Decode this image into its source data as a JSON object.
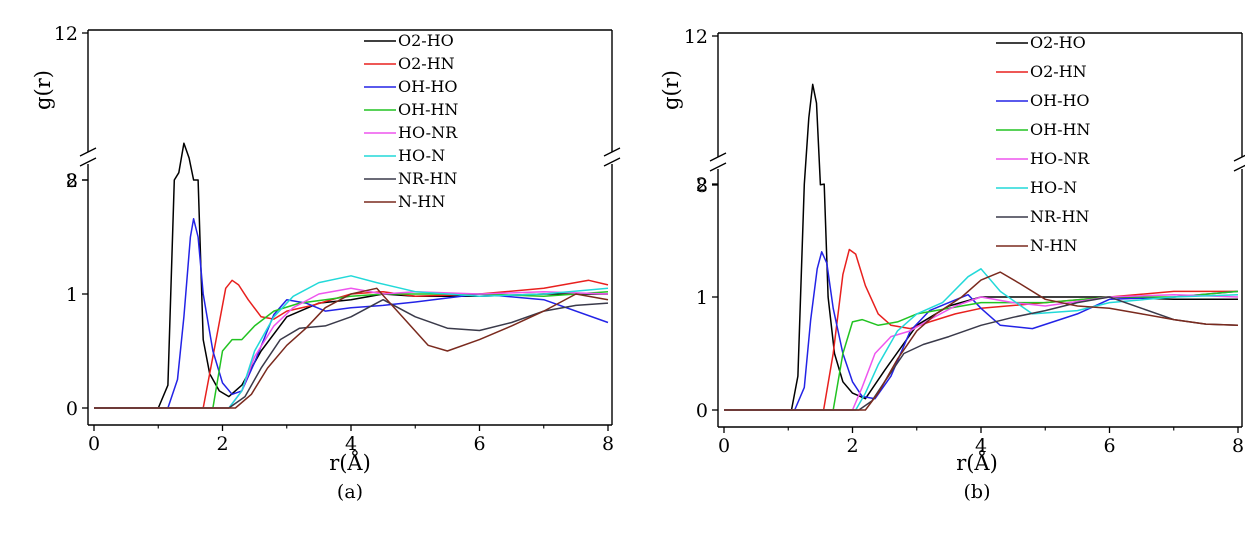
{
  "chart_data": [
    {
      "type": "line",
      "caption": "(a)",
      "xlabel": "r(Å)",
      "ylabel": "g(r)",
      "xlim": [
        0,
        8
      ],
      "ylim": [
        0,
        12
      ],
      "axis_break": [
        2,
        8
      ],
      "xticks": [
        "0",
        "2",
        "4",
        "6",
        "8"
      ],
      "yticks": [
        "0",
        "1",
        "2",
        "8",
        "12"
      ],
      "grid": false,
      "legend_position": "top-right",
      "series": [
        {
          "name": "O2-HO",
          "color": "#000000",
          "x": [
            0,
            1.0,
            1.15,
            1.25,
            1.32,
            1.4,
            1.48,
            1.55,
            1.62,
            1.7,
            1.8,
            1.95,
            2.1,
            2.3,
            2.6,
            3.0,
            3.5,
            4.0,
            4.5,
            5.0,
            6.0,
            7.0,
            8.0
          ],
          "y": [
            0,
            0,
            0.2,
            3.5,
            8.2,
            9.0,
            8.6,
            5.5,
            2.0,
            0.6,
            0.3,
            0.15,
            0.1,
            0.2,
            0.5,
            0.8,
            0.92,
            0.95,
            1.0,
            0.98,
            0.98,
            1.0,
            1.0
          ]
        },
        {
          "name": "O2-HN",
          "color": "#e8201e",
          "x": [
            0,
            1.7,
            1.9,
            2.05,
            2.15,
            2.25,
            2.4,
            2.6,
            2.8,
            3.0,
            3.4,
            4.0,
            4.5,
            5.0,
            6.0,
            7.0,
            7.7,
            8.0
          ],
          "y": [
            0,
            0,
            0.6,
            1.05,
            1.12,
            1.08,
            0.95,
            0.8,
            0.78,
            0.85,
            0.9,
            1.0,
            1.02,
            0.98,
            1.0,
            1.05,
            1.12,
            1.08
          ]
        },
        {
          "name": "OH-HO",
          "color": "#2323e6",
          "x": [
            0,
            1.15,
            1.3,
            1.4,
            1.5,
            1.55,
            1.62,
            1.7,
            1.85,
            2.0,
            2.15,
            2.3,
            2.5,
            2.8,
            3.0,
            3.3,
            3.6,
            4.0,
            4.5,
            5.0,
            6.0,
            7.0,
            8.0
          ],
          "y": [
            0,
            0,
            0.25,
            0.8,
            1.5,
            1.66,
            1.5,
            1.0,
            0.5,
            0.22,
            0.12,
            0.15,
            0.4,
            0.82,
            0.95,
            0.92,
            0.85,
            0.88,
            0.9,
            0.93,
            1.0,
            0.95,
            0.75
          ]
        },
        {
          "name": "OH-HN",
          "color": "#22c322",
          "x": [
            0,
            1.85,
            2.0,
            2.15,
            2.3,
            2.5,
            2.8,
            3.2,
            3.6,
            4.0,
            4.5,
            5.0,
            6.0,
            7.0,
            8.0
          ],
          "y": [
            0,
            0,
            0.5,
            0.6,
            0.6,
            0.72,
            0.85,
            0.92,
            0.95,
            0.98,
            1.0,
            1.0,
            1.0,
            0.98,
            1.02
          ]
        },
        {
          "name": "HO-NR",
          "color": "#ee55ee",
          "x": [
            0,
            2.1,
            2.3,
            2.5,
            2.8,
            3.1,
            3.5,
            4.0,
            4.5,
            5.0,
            6.0,
            7.0,
            8.0
          ],
          "y": [
            0,
            0,
            0.15,
            0.45,
            0.72,
            0.88,
            1.0,
            1.05,
            1.0,
            1.02,
            1.0,
            1.02,
            1.0
          ]
        },
        {
          "name": "HO-N",
          "color": "#22d9d9",
          "x": [
            0,
            2.1,
            2.3,
            2.5,
            2.8,
            3.1,
            3.5,
            4.0,
            4.4,
            5.0,
            6.0,
            7.0,
            8.0
          ],
          "y": [
            0,
            0,
            0.15,
            0.5,
            0.8,
            0.98,
            1.1,
            1.16,
            1.1,
            1.02,
            0.98,
            1.0,
            1.05
          ]
        },
        {
          "name": "NR-HN",
          "color": "#3a3a4a",
          "x": [
            0,
            2.1,
            2.35,
            2.6,
            2.9,
            3.2,
            3.6,
            4.0,
            4.5,
            5.0,
            5.5,
            6.0,
            6.5,
            7.0,
            7.5,
            8.0
          ],
          "y": [
            0,
            0,
            0.1,
            0.35,
            0.6,
            0.7,
            0.72,
            0.8,
            0.95,
            0.8,
            0.7,
            0.68,
            0.75,
            0.85,
            0.9,
            0.92
          ]
        },
        {
          "name": "N-HN",
          "color": "#7a2a1e",
          "x": [
            0,
            2.2,
            2.45,
            2.7,
            3.0,
            3.3,
            3.6,
            4.0,
            4.4,
            4.8,
            5.2,
            5.5,
            6.0,
            6.5,
            7.0,
            7.5,
            8.0
          ],
          "y": [
            0,
            0,
            0.12,
            0.35,
            0.55,
            0.7,
            0.88,
            1.0,
            1.05,
            0.8,
            0.55,
            0.5,
            0.6,
            0.72,
            0.85,
            1.0,
            0.95
          ]
        }
      ]
    },
    {
      "type": "line",
      "caption": "(b)",
      "xlabel": "r(Å)",
      "ylabel": "g(r)",
      "xlim": [
        0,
        8
      ],
      "ylim": [
        0,
        12
      ],
      "axis_break": [
        2,
        8
      ],
      "xticks": [
        "0",
        "2",
        "4",
        "6",
        "8"
      ],
      "yticks": [
        "0",
        "1",
        "2",
        "8",
        "12"
      ],
      "grid": false,
      "legend_position": "top-right",
      "series": [
        {
          "name": "O2-HO",
          "color": "#000000",
          "x": [
            0,
            1.05,
            1.15,
            1.25,
            1.32,
            1.38,
            1.44,
            1.5,
            1.56,
            1.62,
            1.72,
            1.85,
            2.0,
            2.2,
            2.5,
            3.0,
            3.5,
            4.0,
            5.0,
            6.0,
            7.0,
            8.0
          ],
          "y": [
            0,
            0,
            0.3,
            4.0,
            9.8,
            10.7,
            10.2,
            6.5,
            2.5,
            1.0,
            0.5,
            0.25,
            0.15,
            0.1,
            0.35,
            0.75,
            0.92,
            1.0,
            1.0,
            1.0,
            0.98,
            0.98
          ]
        },
        {
          "name": "O2-HN",
          "color": "#e8201e",
          "x": [
            0,
            1.55,
            1.7,
            1.85,
            1.95,
            2.05,
            2.2,
            2.4,
            2.6,
            2.9,
            3.2,
            3.6,
            4.0,
            5.0,
            6.0,
            7.0,
            8.0
          ],
          "y": [
            0,
            0,
            0.5,
            1.2,
            1.42,
            1.38,
            1.1,
            0.85,
            0.75,
            0.72,
            0.78,
            0.85,
            0.9,
            0.95,
            1.0,
            1.05,
            1.05
          ]
        },
        {
          "name": "OH-HO",
          "color": "#2323e6",
          "x": [
            0,
            1.1,
            1.25,
            1.35,
            1.45,
            1.52,
            1.6,
            1.7,
            1.85,
            2.0,
            2.15,
            2.35,
            2.6,
            2.9,
            3.2,
            3.5,
            3.8,
            4.0,
            4.3,
            4.8,
            5.5,
            6.0,
            7.0,
            8.0
          ],
          "y": [
            0,
            0,
            0.2,
            0.8,
            1.25,
            1.4,
            1.3,
            0.9,
            0.5,
            0.25,
            0.12,
            0.1,
            0.3,
            0.7,
            0.88,
            0.95,
            1.02,
            0.9,
            0.75,
            0.72,
            0.85,
            0.98,
            1.0,
            1.05
          ]
        },
        {
          "name": "OH-HN",
          "color": "#22c322",
          "x": [
            0,
            1.7,
            1.85,
            2.0,
            2.15,
            2.4,
            2.7,
            3.0,
            3.5,
            4.0,
            5.0,
            6.0,
            7.0,
            8.0
          ],
          "y": [
            0,
            0,
            0.5,
            0.78,
            0.8,
            0.75,
            0.78,
            0.85,
            0.9,
            0.95,
            0.95,
            1.0,
            1.0,
            1.05
          ]
        },
        {
          "name": "HO-NR",
          "color": "#ee55ee",
          "x": [
            0,
            2.0,
            2.15,
            2.35,
            2.6,
            2.9,
            3.2,
            3.6,
            4.0,
            4.5,
            5.0,
            6.0,
            7.0,
            8.0
          ],
          "y": [
            0,
            0,
            0.2,
            0.5,
            0.65,
            0.7,
            0.8,
            0.92,
            1.0,
            0.95,
            0.92,
            1.0,
            1.02,
            1.0
          ]
        },
        {
          "name": "HO-N",
          "color": "#22d9d9",
          "x": [
            0,
            2.05,
            2.2,
            2.4,
            2.7,
            3.0,
            3.4,
            3.8,
            4.0,
            4.3,
            4.8,
            5.5,
            6.0,
            7.0,
            8.0
          ],
          "y": [
            0,
            0,
            0.15,
            0.4,
            0.7,
            0.85,
            0.95,
            1.18,
            1.25,
            1.05,
            0.85,
            0.88,
            0.95,
            1.0,
            1.02
          ]
        },
        {
          "name": "NR-HN",
          "color": "#3a3a4a",
          "x": [
            0,
            2.1,
            2.3,
            2.5,
            2.8,
            3.1,
            3.5,
            4.0,
            4.5,
            5.0,
            5.5,
            6.0,
            6.5,
            7.0,
            7.5,
            8.0
          ],
          "y": [
            0,
            0,
            0.08,
            0.25,
            0.5,
            0.58,
            0.65,
            0.75,
            0.82,
            0.88,
            0.95,
            1.0,
            0.9,
            0.8,
            0.76,
            0.75
          ]
        },
        {
          "name": "N-HN",
          "color": "#7a2a1e",
          "x": [
            0,
            2.2,
            2.4,
            2.7,
            3.0,
            3.3,
            3.7,
            4.0,
            4.3,
            4.6,
            5.0,
            5.5,
            6.0,
            6.5,
            7.0,
            7.5,
            8.0
          ],
          "y": [
            0,
            0,
            0.15,
            0.45,
            0.7,
            0.85,
            1.0,
            1.15,
            1.22,
            1.12,
            0.98,
            0.92,
            0.9,
            0.85,
            0.8,
            0.76,
            0.75
          ]
        }
      ]
    }
  ]
}
